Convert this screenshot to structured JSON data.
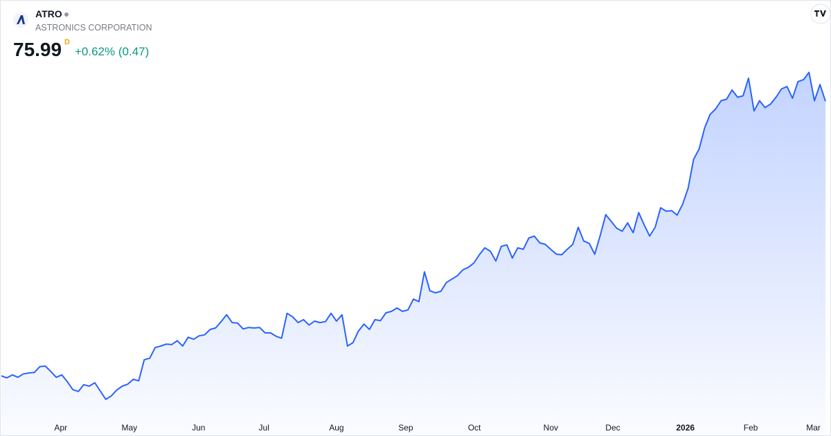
{
  "header": {
    "ticker": "ATRO",
    "company": "ASTRONICS CORPORATION",
    "price": "75.99",
    "interval": "D",
    "change": "+0.62% (0.47)"
  },
  "chart_data": {
    "type": "area",
    "color": "#2962ff",
    "values": [
      19.8,
      19.4,
      20.0,
      19.5,
      20.2,
      20.4,
      20.5,
      21.7,
      21.8,
      20.7,
      19.5,
      20.0,
      18.6,
      17.0,
      16.6,
      18.0,
      17.7,
      18.4,
      16.7,
      15.0,
      15.7,
      16.9,
      17.7,
      18.1,
      19.1,
      18.8,
      23.1,
      23.4,
      25.6,
      25.9,
      26.3,
      26.2,
      27.0,
      25.9,
      27.7,
      27.3,
      28.0,
      28.2,
      29.3,
      29.6,
      30.9,
      32.3,
      30.7,
      30.6,
      29.4,
      29.7,
      29.6,
      29.7,
      28.6,
      28.6,
      27.9,
      27.5,
      32.6,
      31.9,
      30.7,
      31.3,
      30.2,
      31.0,
      30.7,
      30.9,
      32.6,
      31.0,
      32.3,
      25.9,
      26.6,
      29.0,
      30.4,
      29.3,
      31.3,
      31.1,
      32.7,
      33.0,
      33.7,
      33.0,
      33.3,
      35.5,
      35.0,
      41.1,
      37.2,
      36.8,
      37.1,
      38.9,
      39.6,
      40.3,
      41.5,
      42.0,
      42.9,
      44.6,
      46.0,
      45.3,
      43.3,
      46.3,
      46.6,
      43.9,
      46.0,
      45.7,
      48.0,
      48.4,
      47.0,
      46.7,
      45.7,
      44.7,
      44.6,
      45.7,
      46.7,
      50.2,
      47.4,
      46.9,
      44.7,
      48.5,
      52.8,
      51.4,
      50.0,
      49.4,
      51.1,
      49.1,
      53.2,
      50.7,
      48.4,
      50.2,
      54.2,
      53.5,
      53.6,
      52.7,
      54.9,
      58.2,
      64.1,
      66.2,
      70.5,
      73.3,
      74.4,
      76.1,
      76.4,
      78.3,
      76.8,
      77.1,
      80.7,
      74.0,
      76.1,
      74.7,
      75.4,
      76.8,
      78.5,
      79.0,
      76.6,
      80.0,
      80.4,
      81.9,
      76.1,
      79.4,
      75.99
    ],
    "xlim": [
      0,
      150
    ],
    "ylim": [
      7.5,
      96.7
    ],
    "xticks": [
      {
        "value": 10.8,
        "label": "Apr"
      },
      {
        "value": 23.3,
        "label": "May"
      },
      {
        "value": 35.9,
        "label": "Jun"
      },
      {
        "value": 47.8,
        "label": "Jul"
      },
      {
        "value": 61.0,
        "label": "Aug"
      },
      {
        "value": 73.6,
        "label": "Sep"
      },
      {
        "value": 86.1,
        "label": "Oct"
      },
      {
        "value": 100,
        "label": "Nov"
      },
      {
        "value": 111.3,
        "label": "Dec"
      },
      {
        "value": 124.5,
        "label": "2026"
      },
      {
        "value": 136.4,
        "label": "Feb"
      },
      {
        "value": 147.8,
        "label": "Mar"
      }
    ]
  }
}
